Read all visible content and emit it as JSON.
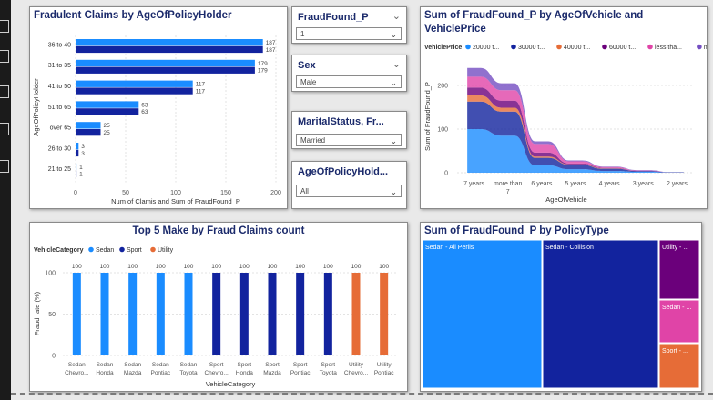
{
  "charts": [
    {
      "id": "policyholder-age",
      "type": "bar",
      "orientation": "horizontal",
      "title": "Fradulent Claims by AgeOfPolicyHolder",
      "ylabel": "AgeOfPolicyHolder",
      "xlabel": "Num of Clamis and Sum of FraudFound_P",
      "categories": [
        "36 to 40",
        "31 to 35",
        "41 to 50",
        "51 to 65",
        "over 65",
        "26 to 30",
        "21 to 25"
      ],
      "series": [
        {
          "name": "Num of Clamis",
          "color": "#1a8cff",
          "values": [
            187,
            179,
            117,
            63,
            25,
            3,
            1
          ]
        },
        {
          "name": "Sum of FraudFound_P",
          "color": "#12239e",
          "values": [
            187,
            179,
            117,
            63,
            25,
            3,
            1
          ]
        }
      ],
      "xlim": [
        0,
        200
      ],
      "xticks": [
        0,
        50,
        100,
        150,
        200
      ]
    },
    {
      "id": "vehicle-age-ribbon",
      "type": "area",
      "title": "Sum of FraudFound_P by AgeOfVehicle and VehiclePrice",
      "legend_title": "VehiclePrice",
      "xlabel": "AgeOfVehicle",
      "ylabel": "Sum of FraudFound_P",
      "categories": [
        "7 years",
        "more than 7",
        "6 years",
        "5 years",
        "4 years",
        "3 years",
        "2 years"
      ],
      "ylim": [
        0,
        250
      ],
      "yticks": [
        0,
        100,
        200
      ],
      "series": [
        {
          "name": "20000 t...",
          "color": "#1a8cff",
          "values": [
            100,
            85,
            17,
            8,
            4,
            2,
            0
          ]
        },
        {
          "name": "30000 t...",
          "color": "#12239e",
          "values": [
            63,
            55,
            17,
            10,
            5,
            2,
            1
          ]
        },
        {
          "name": "40000 t...",
          "color": "#e66c37",
          "values": [
            14,
            9,
            3,
            1,
            1,
            0,
            0
          ]
        },
        {
          "name": "60000 t...",
          "color": "#6b007b",
          "values": [
            18,
            16,
            9,
            2,
            1,
            0,
            0
          ]
        },
        {
          "name": "less tha...",
          "color": "#e044a7",
          "values": [
            25,
            24,
            20,
            5,
            2,
            1,
            0
          ]
        },
        {
          "name": "more th...",
          "color": "#744ec2",
          "values": [
            20,
            16,
            6,
            2,
            1,
            1,
            0
          ]
        }
      ]
    },
    {
      "id": "top5-make",
      "type": "bar",
      "title": "Top 5 Make by Fraud Claims count",
      "legend_title": "VehicleCategory",
      "xlabel": "VehicleCategory",
      "ylabel": "Fraud rate (%)",
      "legend": [
        {
          "name": "Sedan",
          "color": "#1a8cff"
        },
        {
          "name": "Sport",
          "color": "#12239e"
        },
        {
          "name": "Utility",
          "color": "#e66c37"
        }
      ],
      "categories": [
        {
          "cat": "Sedan",
          "make": "Chevro...",
          "series": "Sedan"
        },
        {
          "cat": "Sedan",
          "make": "Honda",
          "series": "Sedan"
        },
        {
          "cat": "Sedan",
          "make": "Mazda",
          "series": "Sedan"
        },
        {
          "cat": "Sedan",
          "make": "Pontiac",
          "series": "Sedan"
        },
        {
          "cat": "Sedan",
          "make": "Toyota",
          "series": "Sedan"
        },
        {
          "cat": "Sport",
          "make": "Chevro...",
          "series": "Sport"
        },
        {
          "cat": "Sport",
          "make": "Honda",
          "series": "Sport"
        },
        {
          "cat": "Sport",
          "make": "Mazda",
          "series": "Sport"
        },
        {
          "cat": "Sport",
          "make": "Pontiac",
          "series": "Sport"
        },
        {
          "cat": "Sport",
          "make": "Toyota",
          "series": "Sport"
        },
        {
          "cat": "Utility",
          "make": "Chevro...",
          "series": "Utility"
        },
        {
          "cat": "Utility",
          "make": "Pontiac",
          "series": "Utility"
        }
      ],
      "values": [
        100,
        100,
        100,
        100,
        100,
        100,
        100,
        100,
        100,
        100,
        100,
        100
      ],
      "ylim": [
        0,
        100
      ],
      "yticks": [
        0,
        50,
        100
      ]
    },
    {
      "id": "policy-type-treemap",
      "type": "heatmap",
      "title": "Sum of FraudFound_P by PolicyType",
      "cells": [
        {
          "label": "Sedan - All Perils",
          "color": "#1a8cff"
        },
        {
          "label": "Sedan - Collision",
          "color": "#12239e"
        },
        {
          "label": "Utility - ...",
          "color": "#6b007b"
        },
        {
          "label": "Sedan - ...",
          "color": "#e044a7"
        },
        {
          "label": "Sport - ...",
          "color": "#e66c37"
        }
      ]
    }
  ],
  "slicers": [
    {
      "title": "FraudFound_P",
      "value": "1"
    },
    {
      "title": "Sex",
      "value": "Male"
    },
    {
      "title": "MaritalStatus, Fr...",
      "value": "Married"
    },
    {
      "title": "AgeOfPolicyHold...",
      "value": "All"
    }
  ]
}
